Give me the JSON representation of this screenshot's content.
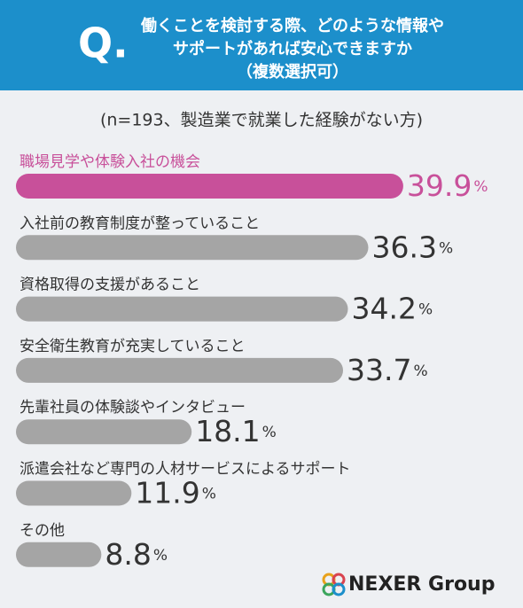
{
  "badge": "Q.",
  "logo": "NEXER Group",
  "chart_data": {
    "type": "bar",
    "orientation": "horizontal",
    "title": [
      "働くことを検討する際、どのような情報や",
      "サポートがあれば安心できますか",
      "（複数選択可）"
    ],
    "subtitle": "(n=193、製造業で就業した経験がない方)",
    "categories": [
      "職場見学や体験入社の機会",
      "入社前の教育制度が整っていること",
      "資格取得の支援があること",
      "安全衛生教育が充実していること",
      "先輩社員の体験談やインタビュー",
      "派遣会社など専門の人材サービスによるサポート",
      "その他"
    ],
    "values": [
      39.9,
      36.3,
      34.2,
      33.7,
      18.1,
      11.9,
      8.8
    ],
    "unit": "%",
    "colors": [
      "#c8509a",
      "#a5a5a5",
      "#a5a5a5",
      "#a5a5a5",
      "#a5a5a5",
      "#a5a5a5",
      "#a5a5a5"
    ]
  }
}
